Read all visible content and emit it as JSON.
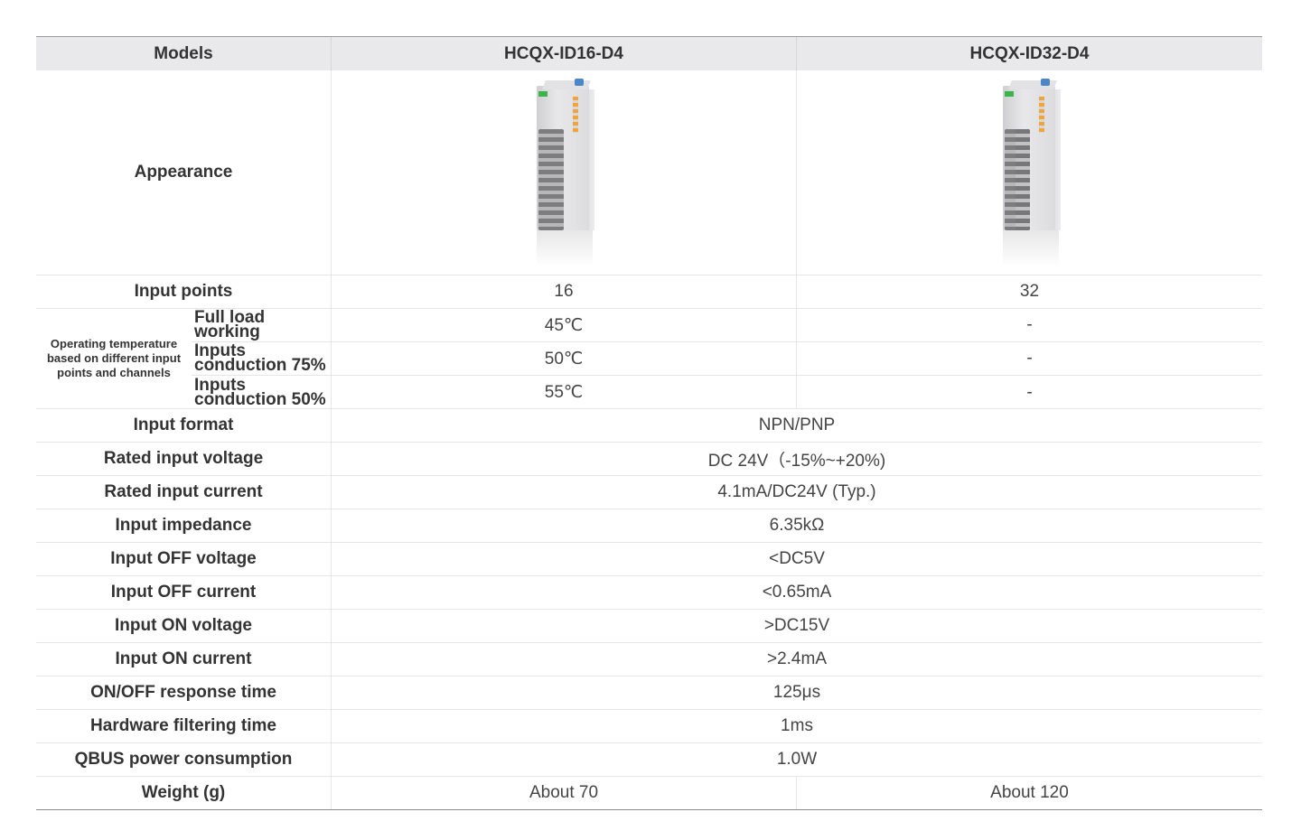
{
  "table": {
    "header": {
      "label": "Models",
      "model1": "HCQX-ID16-D4",
      "model2": "HCQX-ID32-D4"
    },
    "appearance_label": "Appearance",
    "input_points": {
      "label": "Input points",
      "m1": "16",
      "m2": "32"
    },
    "operating_temperature": {
      "label": "Operating temperature based on different input points and channels",
      "rows": [
        {
          "label": "Full load working",
          "m1": "45℃",
          "m2": "-"
        },
        {
          "label": "Inputs conduction 75%",
          "m1": "50℃",
          "m2": "-"
        },
        {
          "label": "Inputs conduction 50%",
          "m1": "55℃",
          "m2": "-"
        }
      ]
    },
    "shared_rows": [
      {
        "label": "Input format",
        "value": "NPN/PNP"
      },
      {
        "label": "Rated input voltage",
        "value": "DC 24V（-15%~+20%)"
      },
      {
        "label": "Rated input current",
        "value": "4.1mA/DC24V (Typ.)"
      },
      {
        "label": "Input impedance",
        "value": "6.35kΩ"
      },
      {
        "label": "Input OFF voltage",
        "value": "<DC5V"
      },
      {
        "label": "Input OFF current",
        "value": "<0.65mA"
      },
      {
        "label": "Input ON voltage",
        "value": ">DC15V"
      },
      {
        "label": "Input ON current",
        "value": ">2.4mA"
      },
      {
        "label": "ON/OFF response time",
        "value": "125μs"
      },
      {
        "label": "Hardware filtering time",
        "value": "1ms"
      },
      {
        "label": "QBUS power consumption",
        "value": "1.0W"
      }
    ],
    "weight": {
      "label": "Weight (g)",
      "m1": "About 70",
      "m2": "About 120"
    }
  },
  "colors": {
    "header_bg": "#e9e9eb",
    "grid": "#e6e6e6",
    "text": "#333333"
  }
}
